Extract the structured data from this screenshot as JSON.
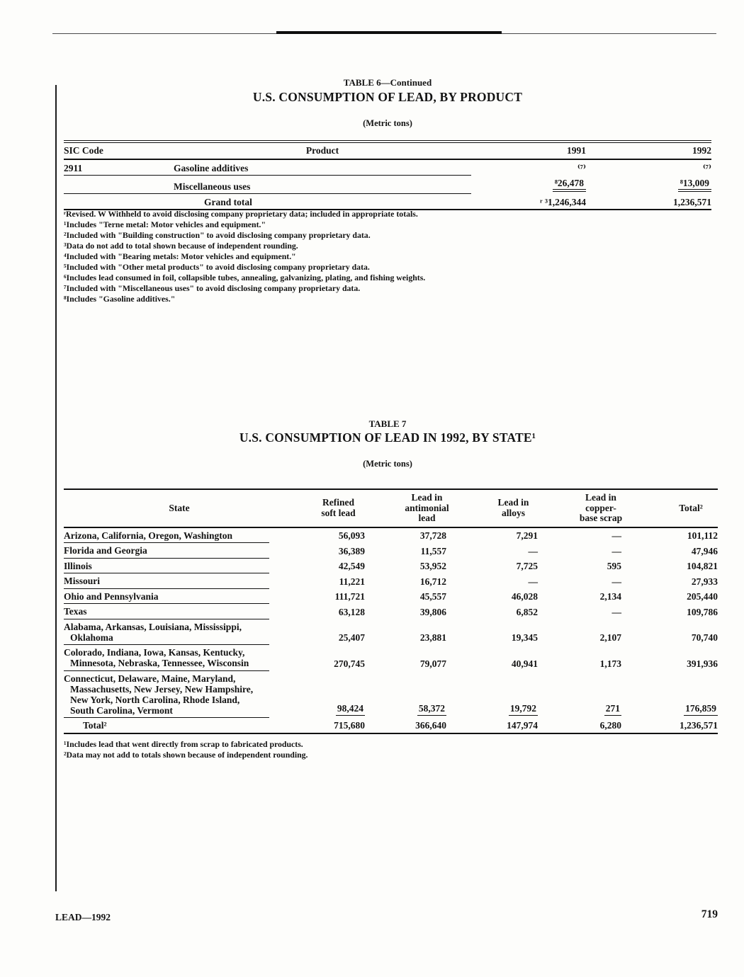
{
  "colors": {
    "ink": "#131313",
    "paper": "#fdfdfb"
  },
  "page": {
    "footer_left": "LEAD—1992",
    "page_number": "719"
  },
  "table6": {
    "caption": "TABLE 6—Continued",
    "title": "U.S. CONSUMPTION OF LEAD, BY PRODUCT",
    "unit": "(Metric tons)",
    "headers": {
      "sic": "SIC Code",
      "product": "Product",
      "y1991": "1991",
      "y1992": "1992"
    },
    "rows": [
      {
        "sic": "2911",
        "product": "Gasoline additives",
        "v1991": "⁽⁷⁾",
        "v1992": "⁽⁷⁾",
        "underline": true
      },
      {
        "sic": "",
        "product": "Miscellaneous uses",
        "v1991": "⁸26,478",
        "v1992": "⁸13,009",
        "underline": true,
        "double_rule": true
      },
      {
        "sic": "",
        "product": "Grand total",
        "v1991": "ʳ ³1,246,344",
        "v1992": "1,236,571",
        "grand": true
      }
    ],
    "footnotes": [
      "ʳRevised.  W Withheld to avoid disclosing company proprietary data; included in appropriate totals.",
      "¹Includes \"Terne metal:  Motor vehicles and equipment.\"",
      "²Included with \"Building construction\" to avoid disclosing company proprietary data.",
      "³Data do not add to total shown because of independent rounding.",
      "⁴Included with \"Bearing metals:  Motor vehicles and equipment.\"",
      "⁵Included with \"Other metal products\" to avoid disclosing company proprietary data.",
      "⁶Includes lead consumed in foil, collapsible tubes, annealing, galvanizing, plating, and fishing weights.",
      "⁷Included with \"Miscellaneous uses\" to avoid disclosing company proprietary data.",
      "⁸Includes \"Gasoline additives.\""
    ]
  },
  "table7": {
    "caption": "TABLE 7",
    "title": "U.S. CONSUMPTION OF LEAD IN 1992, BY STATE¹",
    "unit": "(Metric tons)",
    "columns": [
      [
        "State"
      ],
      [
        "Refined",
        "soft lead"
      ],
      [
        "Lead in",
        "antimonial",
        "lead"
      ],
      [
        "Lead in",
        "alloys"
      ],
      [
        "Lead in",
        "copper-",
        "base scrap"
      ],
      [
        "Total²"
      ]
    ],
    "rows": [
      {
        "state": [
          "Arizona, California, Oregon, Washington"
        ],
        "values": [
          "56,093",
          "37,728",
          "7,291",
          "—",
          "101,112"
        ]
      },
      {
        "state": [
          "Florida and Georgia"
        ],
        "values": [
          "36,389",
          "11,557",
          "—",
          "—",
          "47,946"
        ]
      },
      {
        "state": [
          "Illinois"
        ],
        "values": [
          "42,549",
          "53,952",
          "7,725",
          "595",
          "104,821"
        ]
      },
      {
        "state": [
          "Missouri"
        ],
        "values": [
          "11,221",
          "16,712",
          "—",
          "—",
          "27,933"
        ]
      },
      {
        "state": [
          "Ohio and Pennsylvania"
        ],
        "values": [
          "111,721",
          "45,557",
          "46,028",
          "2,134",
          "205,440"
        ]
      },
      {
        "state": [
          "Texas"
        ],
        "values": [
          "63,128",
          "39,806",
          "6,852",
          "—",
          "109,786"
        ]
      },
      {
        "state": [
          "Alabama, Arkansas, Louisiana, Mississippi,",
          "Oklahoma"
        ],
        "values": [
          "25,407",
          "23,881",
          "19,345",
          "2,107",
          "70,740"
        ]
      },
      {
        "state": [
          "Colorado, Indiana, Iowa, Kansas, Kentucky,",
          "Minnesota, Nebraska, Tennessee, Wisconsin"
        ],
        "values": [
          "270,745",
          "79,077",
          "40,941",
          "1,173",
          "391,936"
        ]
      },
      {
        "state": [
          "Connecticut, Delaware, Maine, Maryland,",
          "Massachusetts, New Jersey, New Hampshire,",
          "New York, North Carolina, Rhode Island,",
          "South Carolina, Vermont"
        ],
        "values": [
          "98,424",
          "58,372",
          "19,792",
          "271",
          "176,859"
        ],
        "sumrule": true
      },
      {
        "state": [
          "Total²"
        ],
        "values": [
          "715,680",
          "366,640",
          "147,974",
          "6,280",
          "1,236,571"
        ],
        "total": true
      }
    ],
    "footnotes": [
      "¹Includes lead that went directly from scrap to fabricated products.",
      "²Data may not add to totals shown because of independent rounding."
    ]
  }
}
